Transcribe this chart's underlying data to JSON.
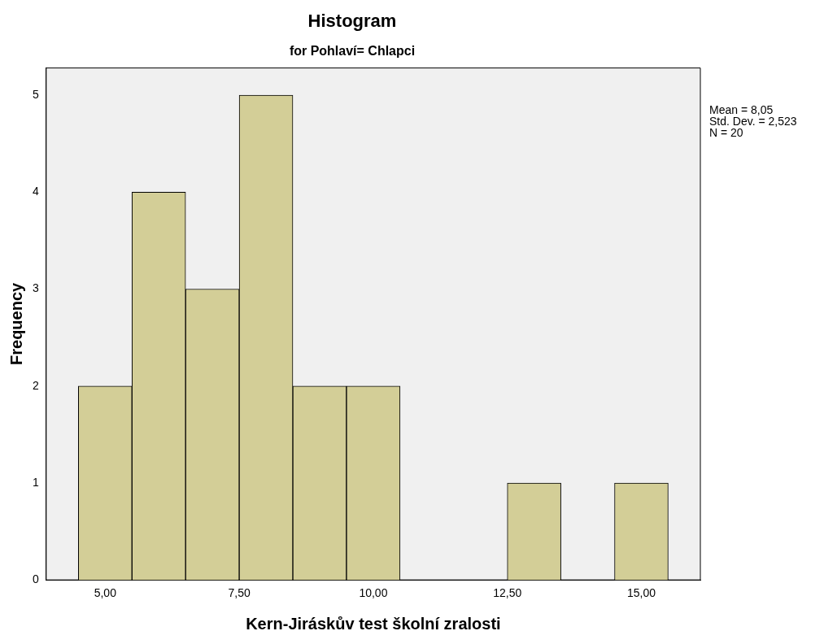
{
  "chart_data": {
    "type": "histogram",
    "title": "Histogram",
    "subtitle": "for Pohlaví= Chlapci",
    "xlabel": "Kern-Jiráskův test školní zralosti",
    "ylabel": "Frequency",
    "bins": [
      4.5,
      5.5,
      6.5,
      7.5,
      8.5,
      9.5,
      10.5,
      11.5,
      12.5,
      13.5,
      14.5,
      15.5
    ],
    "values": [
      2,
      4,
      3,
      5,
      2,
      2,
      0,
      0,
      1,
      0,
      1
    ],
    "color": "#d3ce97",
    "xlim": [
      3.9,
      16.1
    ],
    "xticks": [
      {
        "value": 5,
        "label": "5,00"
      },
      {
        "value": 7.5,
        "label": "7,50"
      },
      {
        "value": 10,
        "label": "10,00"
      },
      {
        "value": 12.5,
        "label": "12,50"
      },
      {
        "value": 15,
        "label": "15,00"
      }
    ],
    "ylim": [
      0,
      5.28
    ],
    "yticks": [
      0,
      1,
      2,
      3,
      4,
      5
    ],
    "grid": false,
    "legend": false,
    "annotations": [
      "Mean = 8,05",
      "Std. Dev. = 2,523",
      "N = 20"
    ]
  }
}
